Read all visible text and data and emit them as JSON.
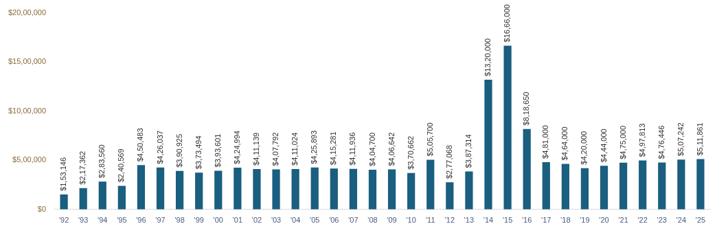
{
  "chart_data": {
    "type": "bar",
    "categories": [
      "'92",
      "'93",
      "'94",
      "'95",
      "'96",
      "'97",
      "'98",
      "'99",
      "'00",
      "'01",
      "'02",
      "'03",
      "'04",
      "'05",
      "'06",
      "'07",
      "'08",
      "'09",
      "'10",
      "'11",
      "'12",
      "'13",
      "'14",
      "'15",
      "'16",
      "'17",
      "'18",
      "'19",
      "'20",
      "'21",
      "'22",
      "'23",
      "'24",
      "'25"
    ],
    "values": [
      153146,
      217362,
      283560,
      240569,
      450483,
      426037,
      390925,
      373494,
      393601,
      424994,
      411139,
      407792,
      411024,
      425893,
      415281,
      411936,
      404700,
      406642,
      370662,
      505700,
      277068,
      387314,
      1320000,
      1666000,
      818650,
      481000,
      464000,
      420000,
      444000,
      475000,
      497813,
      476446,
      507242,
      511861
    ],
    "value_labels": [
      "$1,53,146",
      "$2,17,362",
      "$2,83,560",
      "$2,40,569",
      "$4,50,483",
      "$4,26,037",
      "$3,90,925",
      "$3,73,494",
      "$3,93,601",
      "$4,24,994",
      "$4,11,139",
      "$4,07,792",
      "$4,11,024",
      "$4,25,893",
      "$4,15,281",
      "$4,11,936",
      "$4,04,700",
      "$4,06,642",
      "$3,70,662",
      "$5,05,700",
      "$2,77,068",
      "$3,87,314",
      "$13,20,000",
      "$16,66,000",
      "$8,18,650",
      "$4,81,000",
      "$4,64,000",
      "$4,20,000",
      "$4,44,000",
      "$4,75,000",
      "$4,97,813",
      "$4,76,446",
      "$5,07,242",
      "$5,11,861"
    ],
    "color": "#1a5e80",
    "ylim": [
      0,
      2000000
    ],
    "yticks": [
      {
        "value": 0,
        "label": "$0"
      },
      {
        "value": 500000,
        "label": "$5,00,000"
      },
      {
        "value": 1000000,
        "label": "$10,00,000"
      },
      {
        "value": 1500000,
        "label": "$15,00,000"
      },
      {
        "value": 2000000,
        "label": "$20,00,000"
      }
    ],
    "grid": false,
    "legend": false
  }
}
